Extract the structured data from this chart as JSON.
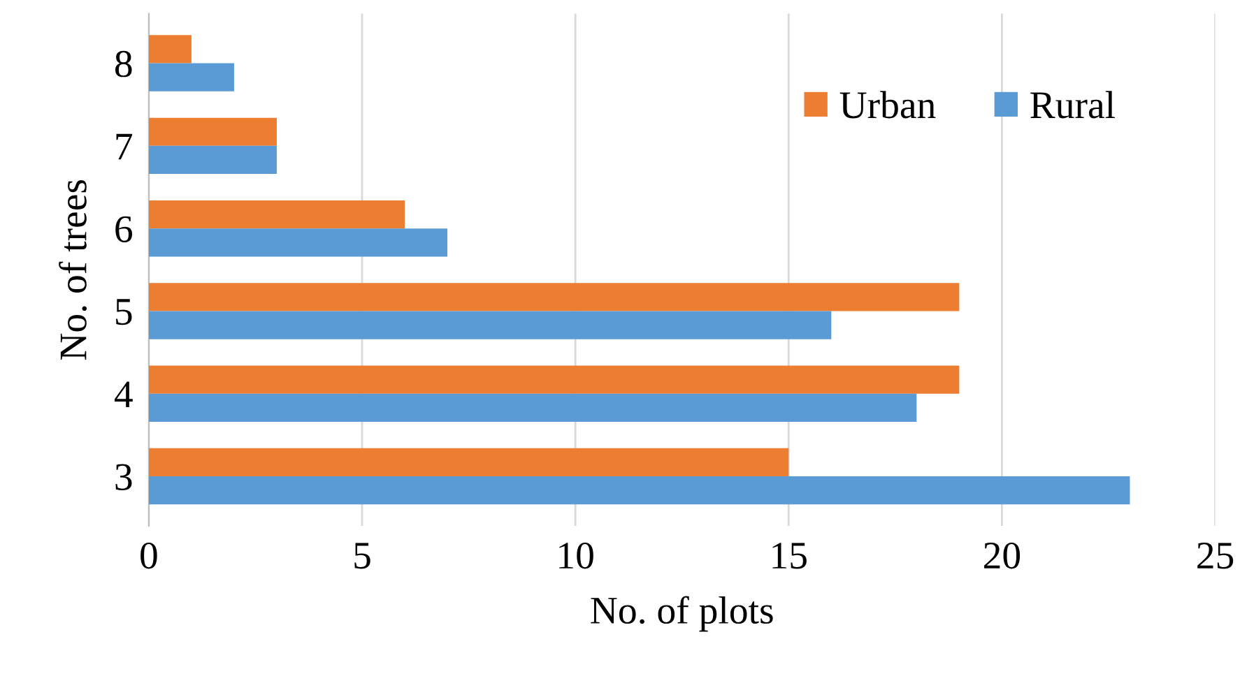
{
  "chart_data": {
    "type": "bar",
    "orientation": "horizontal",
    "xlabel": "No. of plots",
    "ylabel": "No. of trees",
    "categories": [
      "8",
      "7",
      "6",
      "5",
      "4",
      "3"
    ],
    "series": [
      {
        "name": "Urban",
        "color": "#ed7d31",
        "values": [
          1,
          3,
          6,
          19,
          19,
          15
        ]
      },
      {
        "name": "Rural",
        "color": "#5b9bd5",
        "values": [
          2,
          3,
          7,
          16,
          18,
          23
        ]
      }
    ],
    "xlim": [
      0,
      25
    ],
    "xticks": [
      0,
      5,
      10,
      15,
      20,
      25
    ],
    "grid": "x",
    "legend": "top right"
  }
}
